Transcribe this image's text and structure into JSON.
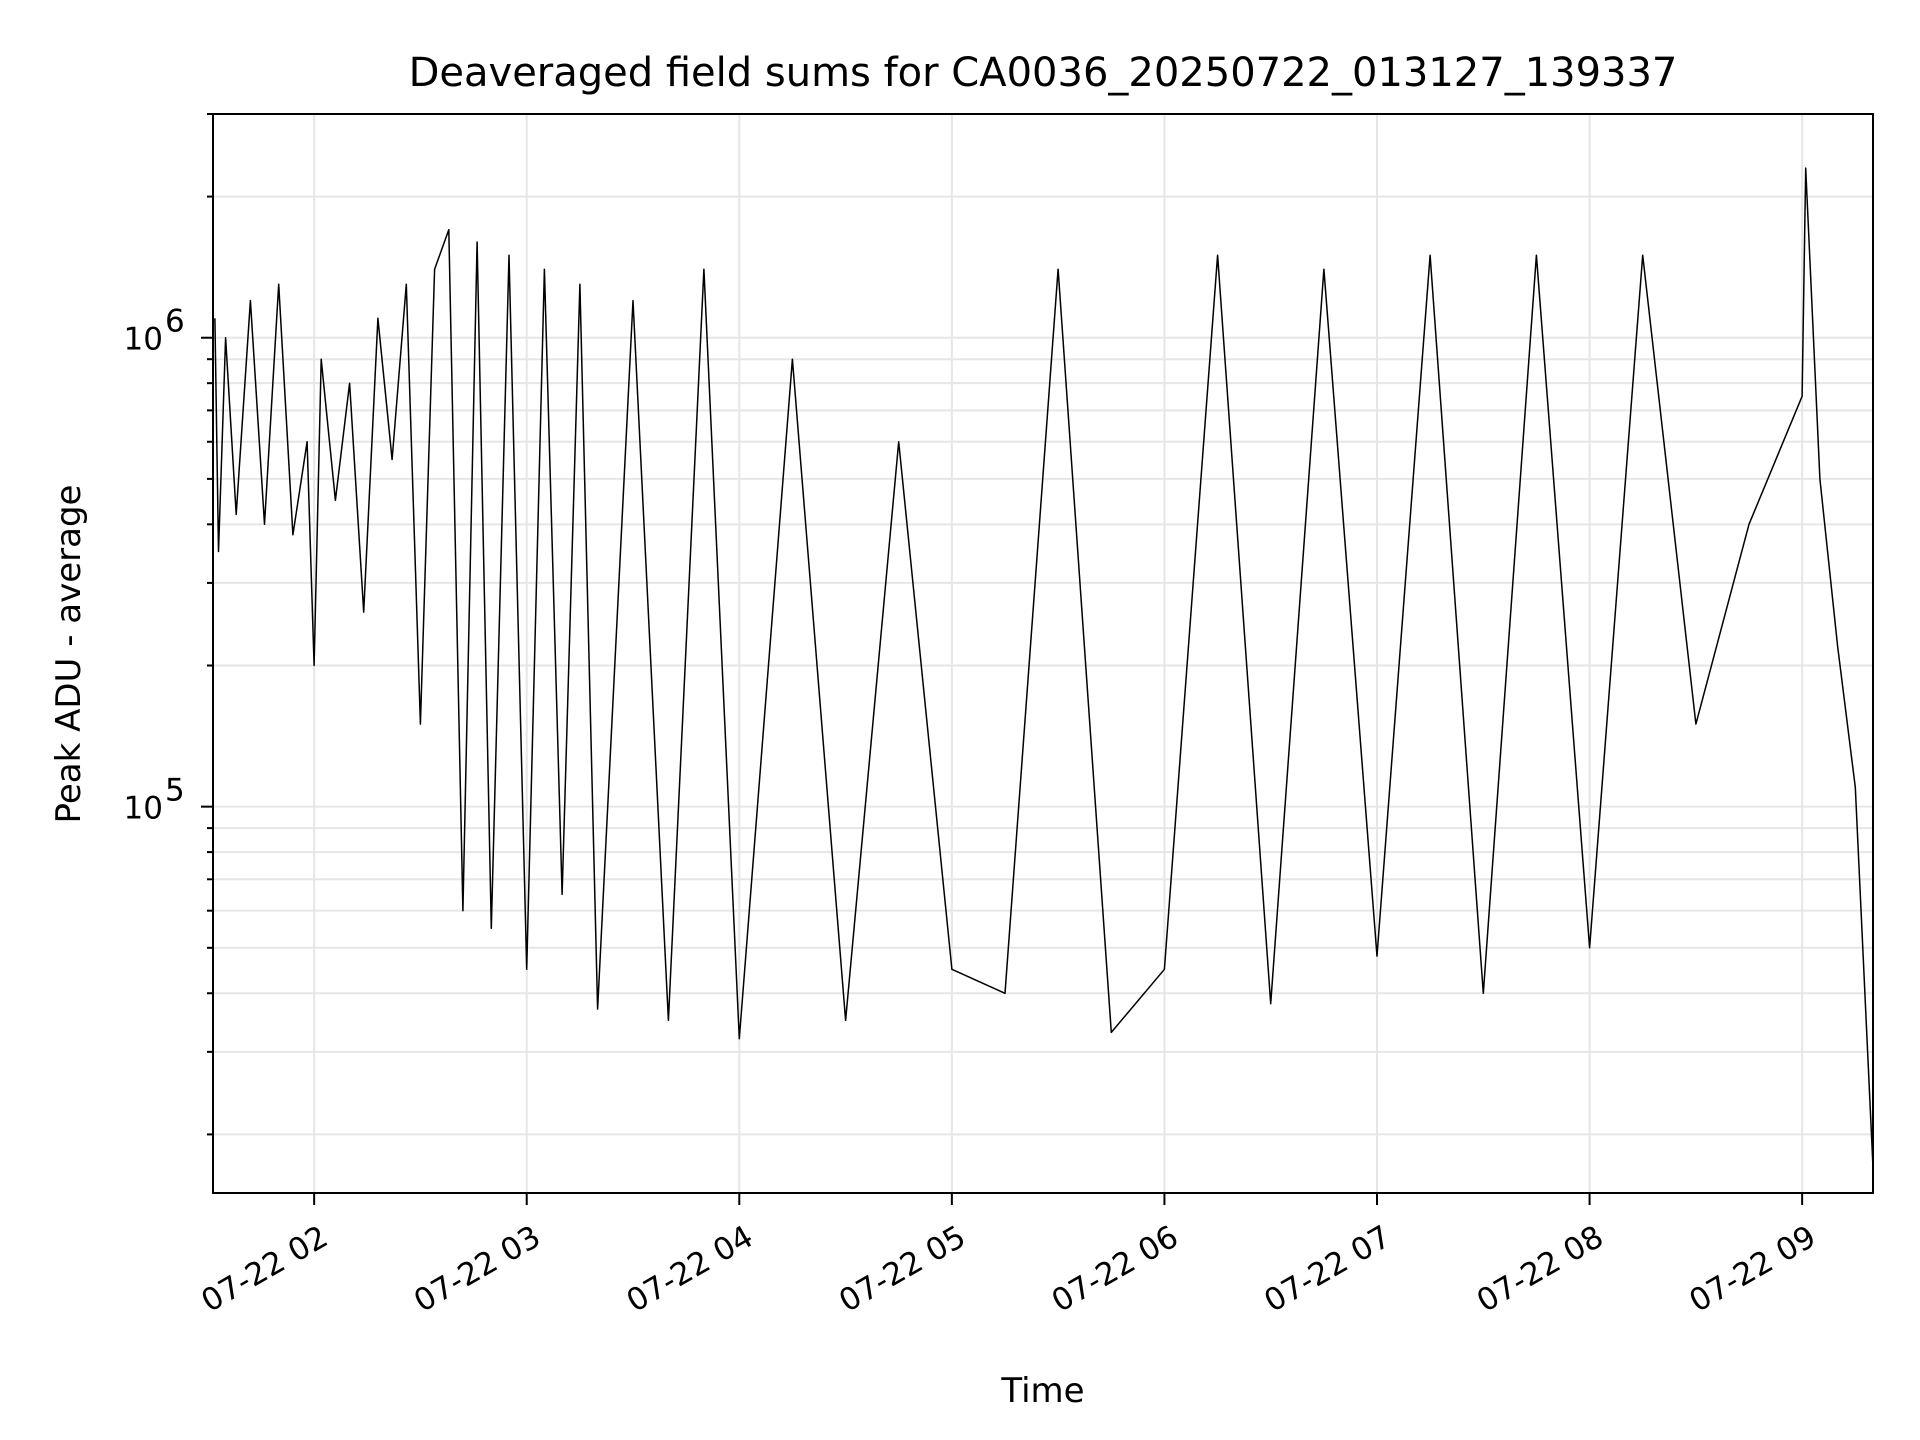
{
  "chart_data": {
    "type": "line",
    "title": "Deaveraged field sums for CA0036_20250722_013127_139337",
    "xlabel": "Time",
    "ylabel": "Peak ADU - average",
    "x_start": "07-22 01:31:27",
    "x_end": "07-22 09:20",
    "x_ticks": [
      "07-22 02",
      "07-22 03",
      "07-22 04",
      "07-22 05",
      "07-22 06",
      "07-22 07",
      "07-22 08",
      "07-22 09"
    ],
    "y_scale": "log",
    "ylim": [
      15000,
      3000000
    ],
    "y_major_ticks": [
      100000,
      1000000
    ],
    "y_major_labels": [
      {
        "base": "10",
        "exp": "5"
      },
      {
        "base": "10",
        "exp": "6"
      }
    ],
    "grid": "on (major and minor, light gray)",
    "line_color": "#000000",
    "grid_color": "#e6e6e6",
    "series": [
      {
        "values": [
          [
            "07-22 01:32",
            1100000
          ],
          [
            "07-22 01:33",
            350000
          ],
          [
            "07-22 01:35",
            1000000
          ],
          [
            "07-22 01:38",
            420000
          ],
          [
            "07-22 01:42",
            1200000
          ],
          [
            "07-22 01:46",
            400000
          ],
          [
            "07-22 01:50",
            1300000
          ],
          [
            "07-22 01:54",
            380000
          ],
          [
            "07-22 01:58",
            600000
          ],
          [
            "07-22 02:00",
            200000
          ],
          [
            "07-22 02:02",
            900000
          ],
          [
            "07-22 02:06",
            450000
          ],
          [
            "07-22 02:10",
            800000
          ],
          [
            "07-22 02:14",
            260000
          ],
          [
            "07-22 02:18",
            1100000
          ],
          [
            "07-22 02:22",
            550000
          ],
          [
            "07-22 02:26",
            1300000
          ],
          [
            "07-22 02:30",
            150000
          ],
          [
            "07-22 02:34",
            1400000
          ],
          [
            "07-22 02:38",
            1700000
          ],
          [
            "07-22 02:42",
            60000
          ],
          [
            "07-22 02:46",
            1600000
          ],
          [
            "07-22 02:50",
            55000
          ],
          [
            "07-22 02:55",
            1500000
          ],
          [
            "07-22 03:00",
            45000
          ],
          [
            "07-22 03:05",
            1400000
          ],
          [
            "07-22 03:10",
            65000
          ],
          [
            "07-22 03:15",
            1300000
          ],
          [
            "07-22 03:20",
            37000
          ],
          [
            "07-22 03:30",
            1200000
          ],
          [
            "07-22 03:40",
            35000
          ],
          [
            "07-22 03:50",
            1400000
          ],
          [
            "07-22 04:00",
            32000
          ],
          [
            "07-22 04:15",
            900000
          ],
          [
            "07-22 04:30",
            35000
          ],
          [
            "07-22 04:45",
            600000
          ],
          [
            "07-22 05:00",
            45000
          ],
          [
            "07-22 05:15",
            40000
          ],
          [
            "07-22 05:30",
            1400000
          ],
          [
            "07-22 05:45",
            33000
          ],
          [
            "07-22 06:00",
            45000
          ],
          [
            "07-22 06:15",
            1500000
          ],
          [
            "07-22 06:30",
            38000
          ],
          [
            "07-22 06:45",
            1400000
          ],
          [
            "07-22 07:00",
            48000
          ],
          [
            "07-22 07:15",
            1500000
          ],
          [
            "07-22 07:30",
            40000
          ],
          [
            "07-22 07:45",
            1500000
          ],
          [
            "07-22 08:00",
            50000
          ],
          [
            "07-22 08:15",
            1500000
          ],
          [
            "07-22 08:30",
            150000
          ],
          [
            "07-22 08:45",
            400000
          ],
          [
            "07-22 09:00",
            750000
          ],
          [
            "07-22 09:01",
            2300000
          ],
          [
            "07-22 09:05",
            500000
          ],
          [
            "07-22 09:10",
            220000
          ],
          [
            "07-22 09:15",
            110000
          ],
          [
            "07-22 09:20",
            17000
          ]
        ]
      }
    ]
  }
}
